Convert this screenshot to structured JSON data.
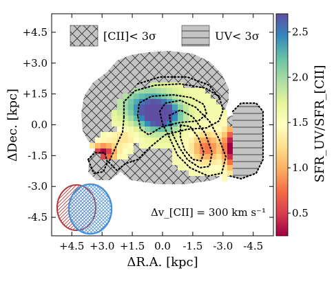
{
  "chart_data": {
    "type": "heatmap",
    "xlabel": "ΔR.A. [kpc]",
    "ylabel": "ΔDec. [kpc]",
    "x_ticks": [
      "+4.5",
      "+3.0",
      "+1.5",
      "0.0",
      "-1.5",
      "-3.0",
      "-4.5"
    ],
    "y_ticks": [
      "+4.5",
      "+3.0",
      "+1.5",
      "0.0",
      "-1.5",
      "-3.0",
      "-4.5"
    ],
    "xlim": [
      5.5,
      -5.5
    ],
    "ylim": [
      -5.4,
      5.4
    ],
    "legend": {
      "placement": "top",
      "entries": [
        {
          "label": "[CII]< 3σ",
          "hatch": "cross-hatch"
        },
        {
          "label": "UV< 3σ",
          "hatch": "horizontal-lines"
        }
      ]
    },
    "colorbar": {
      "label": "SFR_UV/SFR_[CII]",
      "ticks": [
        "0.5",
        "1.0",
        "1.5",
        "2.0",
        "2.5"
      ],
      "range": [
        0.25,
        2.7
      ],
      "colormap": "Spectral"
    },
    "annotation": "Δv_[CII] = 300 km s⁻¹",
    "beams": [
      {
        "name": "[CII] beam",
        "color": "#b03a3a",
        "center": [
          4.4,
          -4.1
        ]
      },
      {
        "name": "UV beam",
        "color": "#4a90d9",
        "center": [
          3.5,
          -4.1
        ]
      }
    ],
    "grid": false
  }
}
